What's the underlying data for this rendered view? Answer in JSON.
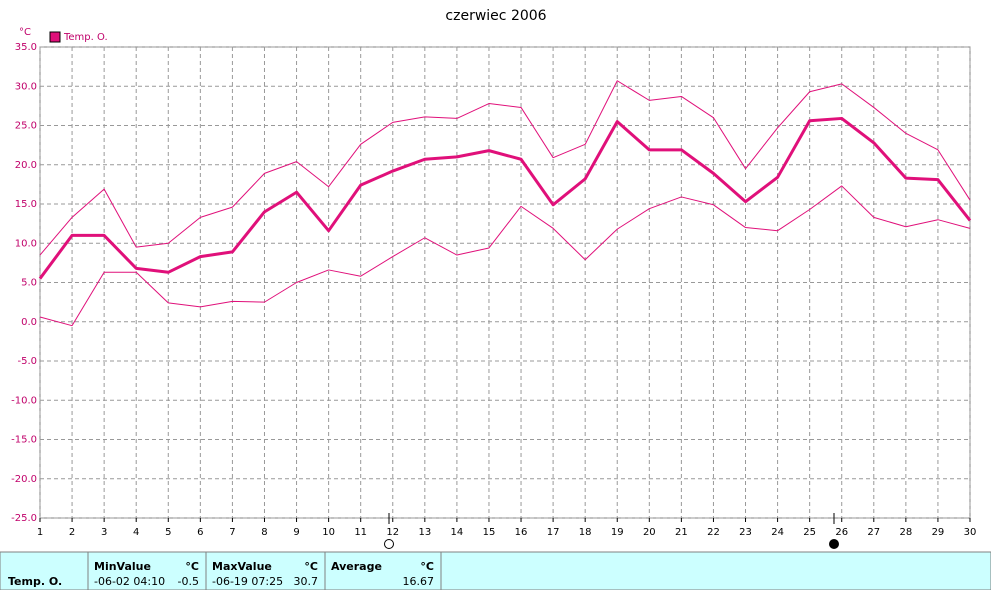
{
  "chart_data": {
    "type": "line",
    "title": "czerwiec 2006",
    "y_label": "°C",
    "x": [
      1,
      2,
      3,
      4,
      5,
      6,
      7,
      8,
      9,
      10,
      11,
      12,
      13,
      14,
      15,
      16,
      17,
      18,
      19,
      20,
      21,
      22,
      23,
      24,
      25,
      26,
      27,
      28,
      29,
      30
    ],
    "xlim": [
      1,
      30
    ],
    "xticks": [
      1,
      2,
      3,
      4,
      5,
      6,
      7,
      8,
      9,
      10,
      11,
      12,
      13,
      14,
      15,
      16,
      17,
      18,
      19,
      20,
      21,
      22,
      23,
      24,
      25,
      26,
      27,
      28,
      29,
      30
    ],
    "ylim": [
      -25,
      35
    ],
    "yticks": [
      {
        "value": -25,
        "label": "-25.0"
      },
      {
        "value": -20,
        "label": "-20.0"
      },
      {
        "value": -15,
        "label": "-15.0"
      },
      {
        "value": -10,
        "label": "-10.0"
      },
      {
        "value": -5,
        "label": "-5.0"
      },
      {
        "value": 0,
        "label": "0.0"
      },
      {
        "value": 5,
        "label": "5.0"
      },
      {
        "value": 10,
        "label": "10.0"
      },
      {
        "value": 15,
        "label": "15.0"
      },
      {
        "value": 20,
        "label": "20.0"
      },
      {
        "value": 25,
        "label": "25.0"
      },
      {
        "value": 30,
        "label": "30.0"
      },
      {
        "value": 35,
        "label": "35.0"
      }
    ],
    "grid": true,
    "legend": "top-left",
    "series": [
      {
        "name": "Temp. O.",
        "color": "#e0107a",
        "width": 3,
        "values": [
          5.5,
          11.0,
          11.0,
          6.8,
          6.3,
          8.3,
          8.9,
          14.0,
          16.5,
          11.6,
          17.4,
          19.2,
          20.7,
          21.0,
          21.8,
          20.7,
          14.9,
          18.2,
          25.5,
          21.9,
          21.9,
          18.9,
          15.3,
          18.4,
          25.6,
          25.9,
          22.8,
          18.3,
          18.1,
          12.9
        ]
      },
      {
        "color": "#e0107a",
        "width": 1,
        "values": [
          8.5,
          13.3,
          16.9,
          9.5,
          10.0,
          13.3,
          14.6,
          18.9,
          20.4,
          17.2,
          22.6,
          25.4,
          26.1,
          25.9,
          27.8,
          27.3,
          20.9,
          22.6,
          30.7,
          28.2,
          28.7,
          26.0,
          19.5,
          24.7,
          29.3,
          30.3,
          27.3,
          24.0,
          21.9,
          15.5
        ]
      },
      {
        "color": "#e0107a",
        "width": 1,
        "values": [
          0.6,
          -0.5,
          6.3,
          6.3,
          2.4,
          1.9,
          2.6,
          2.5,
          5.0,
          6.6,
          5.8,
          8.3,
          10.7,
          8.5,
          9.4,
          14.7,
          11.9,
          7.9,
          11.8,
          14.4,
          15.9,
          14.9,
          12.0,
          11.6,
          14.3,
          17.3,
          13.3,
          12.1,
          13.0,
          11.9
        ]
      }
    ]
  },
  "stats": {
    "row_label": "Temp. O.",
    "columns": [
      {
        "header": "MinValue",
        "unit": "°C",
        "time": "-06-02  04:10",
        "value": -0.5
      },
      {
        "header": "MaxValue",
        "unit": "°C",
        "time": "-06-19  07:25",
        "value": 30.7
      },
      {
        "header": "Average",
        "unit": "°C",
        "value": 16.67
      }
    ]
  }
}
